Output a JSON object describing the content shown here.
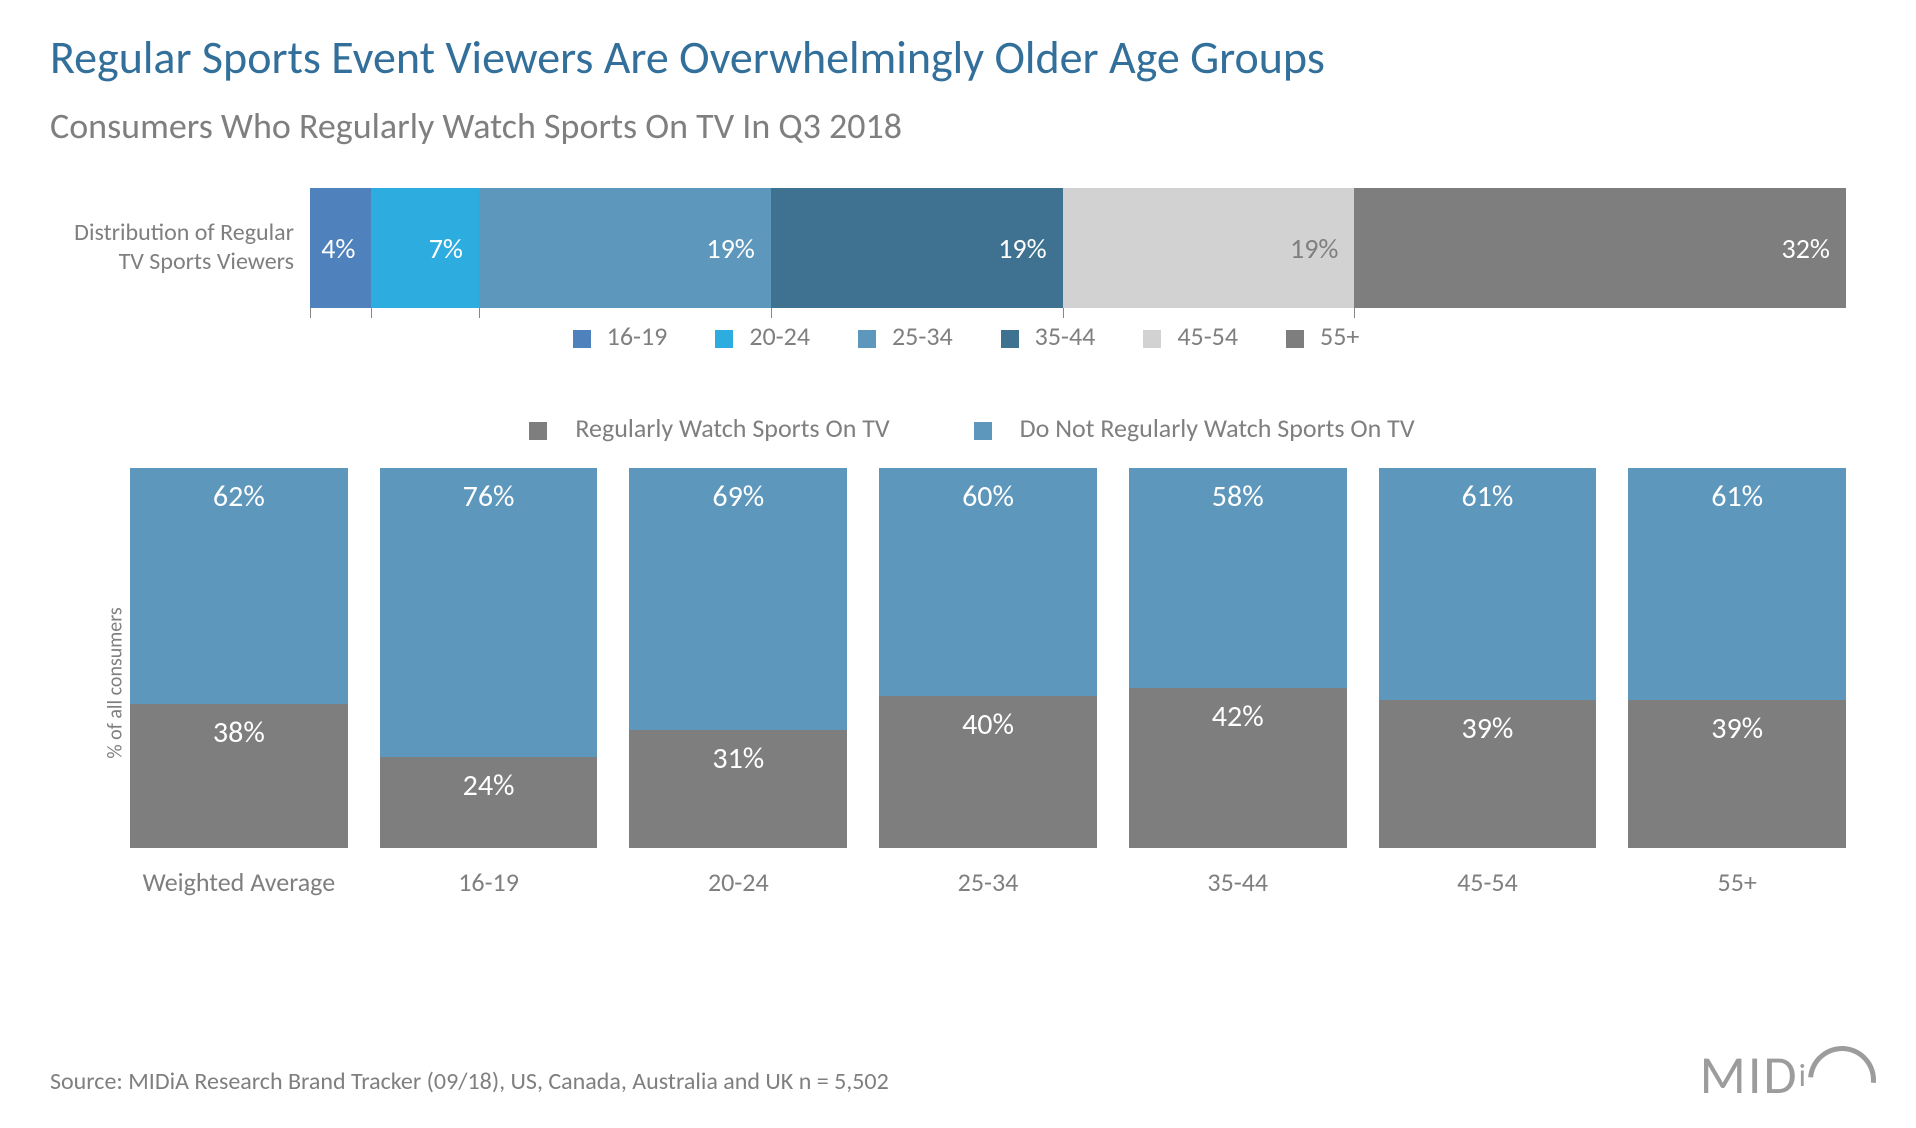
{
  "title": "Regular Sports Event Viewers Are Overwhelmingly Older Age Groups",
  "subtitle": "Consumers Who Regularly Watch Sports On TV In Q3 2018",
  "source": "Source: MIDiA Research Brand Tracker (09/18), US, Canada, Australia and UK n = 5,502",
  "logo_text": "MIDiA",
  "distribution_chart": {
    "type": "stacked-horizontal-bar",
    "row_label": "Distribution of Regular TV Sports Viewers",
    "segments": [
      {
        "label": "16-19",
        "value": 4,
        "display": "4%",
        "color": "#4f81bd",
        "text_color": "#ffffff"
      },
      {
        "label": "20-24",
        "value": 7,
        "display": "7%",
        "color": "#2dacdf",
        "text_color": "#ffffff"
      },
      {
        "label": "25-34",
        "value": 19,
        "display": "19%",
        "color": "#5d97bb",
        "text_color": "#ffffff"
      },
      {
        "label": "35-44",
        "value": 19,
        "display": "19%",
        "color": "#3f7290",
        "text_color": "#ffffff"
      },
      {
        "label": "45-54",
        "value": 19,
        "display": "19%",
        "color": "#d2d2d2",
        "text_color": "#7f7f7f"
      },
      {
        "label": "55+",
        "value": 32,
        "display": "32%",
        "color": "#7e7e7e",
        "text_color": "#ffffff"
      }
    ]
  },
  "vertical_chart": {
    "type": "stacked-vertical-bar-100pct",
    "yaxis_label": "% of all consumers",
    "legend": [
      {
        "label": "Regularly Watch Sports On TV",
        "color": "#7e7e7e"
      },
      {
        "label": "Do Not Regularly Watch Sports On TV",
        "color": "#5d97bb"
      }
    ],
    "bar_colors": {
      "regular": "#7e7e7e",
      "not_regular": "#5d97bb"
    },
    "label_fontsize": 30,
    "categories": [
      {
        "label": "Weighted Average",
        "regular": 38,
        "not_regular": 62
      },
      {
        "label": "16-19",
        "regular": 24,
        "not_regular": 76
      },
      {
        "label": "20-24",
        "regular": 31,
        "not_regular": 69
      },
      {
        "label": "25-34",
        "regular": 40,
        "not_regular": 60
      },
      {
        "label": "35-44",
        "regular": 42,
        "not_regular": 58
      },
      {
        "label": "45-54",
        "regular": 39,
        "not_regular": 61
      },
      {
        "label": "55+",
        "regular": 39,
        "not_regular": 61
      }
    ]
  },
  "typography": {
    "title_fontsize": 46,
    "title_color": "#326f9a",
    "subtitle_fontsize": 36,
    "subtitle_color": "#7f7f7f",
    "legend_fontsize": 26,
    "source_fontsize": 24
  },
  "background_color": "#ffffff"
}
